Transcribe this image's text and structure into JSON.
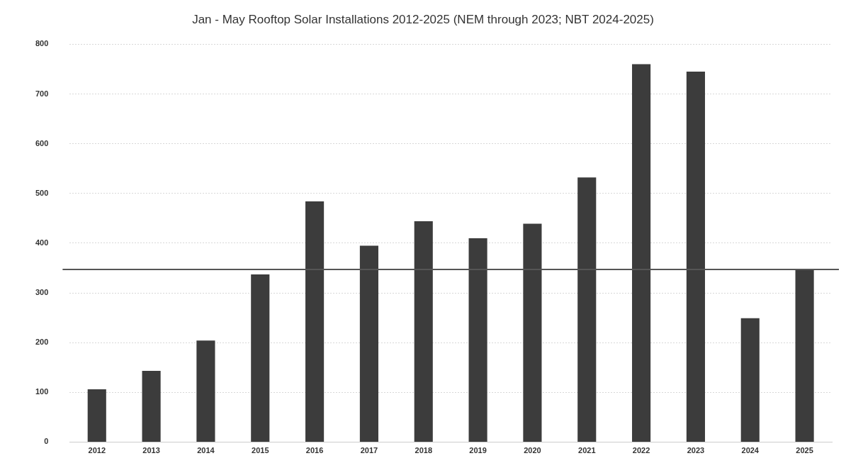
{
  "chart_data": {
    "type": "bar",
    "title": "Jan - May Rooftop Solar Installations 2012-2025 (NEM through 2023; NBT 2024-2025)",
    "categories": [
      "2012",
      "2013",
      "2014",
      "2015",
      "2016",
      "2017",
      "2018",
      "2019",
      "2020",
      "2021",
      "2022",
      "2023",
      "2024",
      "2025"
    ],
    "values": [
      106,
      143,
      204,
      337,
      484,
      395,
      444,
      410,
      439,
      532,
      760,
      745,
      249,
      348
    ],
    "color": "#3c3c3c",
    "ylim": [
      0,
      800
    ],
    "yticks": [
      0,
      100,
      200,
      300,
      400,
      500,
      600,
      700,
      800
    ],
    "grid": "y",
    "ref_lines": [
      {
        "axis": "y",
        "value": 347,
        "color": "#555555"
      }
    ]
  }
}
